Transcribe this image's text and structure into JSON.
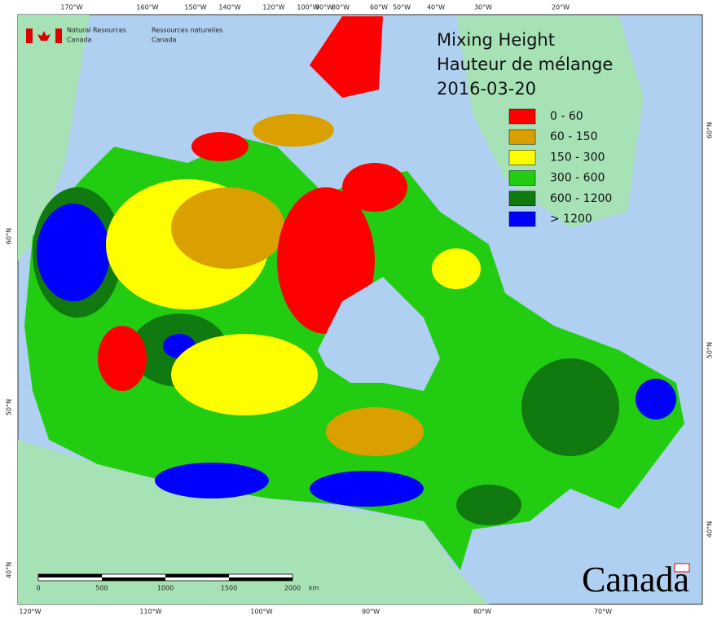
{
  "header": {
    "agency_en": [
      "Natural Resources",
      "Canada"
    ],
    "agency_fr": [
      "Ressources naturelles",
      "Canada"
    ]
  },
  "title": [
    "Mixing Height",
    "Hauteur de mélange",
    "2016-03-20"
  ],
  "legend": [
    {
      "label": "0 - 60",
      "color": "#ff0000"
    },
    {
      "label": "60 - 150",
      "color": "#daa000"
    },
    {
      "label": "150 - 300",
      "color": "#ffff00"
    },
    {
      "label": "300 - 600",
      "color": "#22cc11"
    },
    {
      "label": "600 - 1200",
      "color": "#107a10"
    },
    {
      "label": "> 1200",
      "color": "#0000ff"
    }
  ],
  "top_labels": [
    "170°W",
    "160°W",
    "150°W",
    "140°W",
    "120°W",
    "100°W",
    "90°W",
    "80°W",
    "60°W",
    "50°W",
    "40°W",
    "30°W",
    "20°W"
  ],
  "bottom_labels": [
    "120°W",
    "110°W",
    "100°W",
    "90°W",
    "80°W",
    "70°W"
  ],
  "left_labels": [
    "60°N",
    "50°N",
    "40°N"
  ],
  "right_labels": [
    "60°N",
    "50°N",
    "40°N"
  ],
  "scale": {
    "ticks": [
      0,
      500,
      1000,
      1500,
      2000
    ],
    "unit": "km"
  },
  "wordmark": "Canada"
}
